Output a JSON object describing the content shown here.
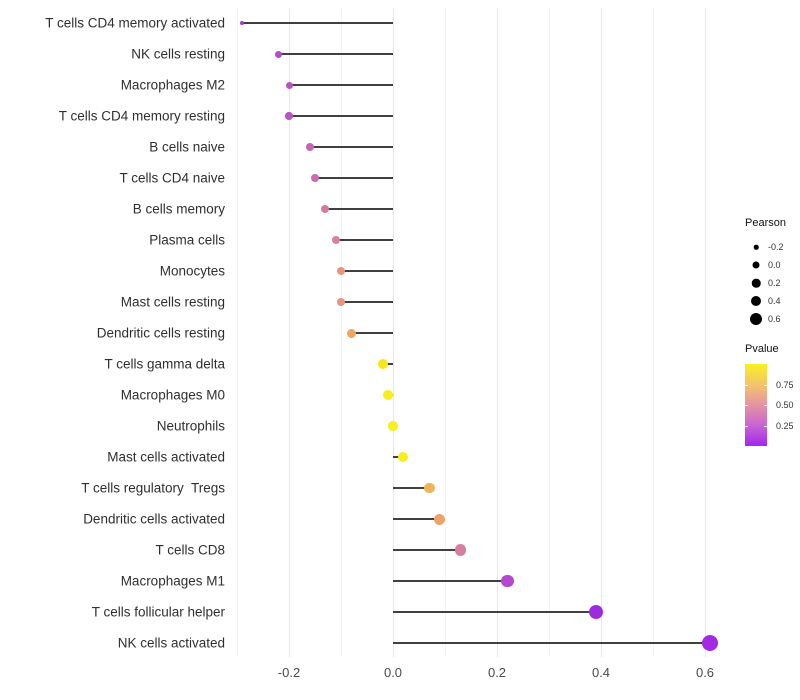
{
  "chart_data": {
    "type": "lollipop",
    "orientation": "horizontal",
    "title": "",
    "xlabel": "",
    "ylabel": "",
    "baseline": 0,
    "x_axis": {
      "tick_labels": [
        "-0.2",
        "0.0",
        "0.2",
        "0.4",
        "0.6"
      ],
      "tick_values": [
        -0.2,
        0.0,
        0.2,
        0.4,
        0.6
      ],
      "minor_gridline_values": [
        -0.3,
        -0.1,
        0.1,
        0.3,
        0.5
      ],
      "range": [
        -0.31,
        0.66
      ],
      "grid": "vertical-only"
    },
    "categories": [
      "T cells CD4 memory activated",
      "NK cells resting",
      "Macrophages M2",
      "T cells CD4 memory resting",
      "B cells naive",
      "T cells CD4 naive",
      "B cells memory",
      "Plasma cells",
      "Monocytes",
      "Mast cells resting",
      "Dendritic cells resting",
      "T cells gamma delta",
      "Macrophages M0",
      "Neutrophils",
      "Mast cells activated",
      "T cells regulatory  Tregs",
      "Dendritic cells activated",
      "T cells CD8",
      "Macrophages M1",
      "T cells follicular helper",
      "NK cells activated"
    ],
    "points": [
      {
        "label": "T cells CD4 memory activated",
        "pearson": -0.29,
        "color": "#A13BD5",
        "size": 4
      },
      {
        "label": "NK cells resting",
        "pearson": -0.22,
        "color": "#B44CC6",
        "size": 7
      },
      {
        "label": "Macrophages M2",
        "pearson": -0.2,
        "color": "#B851C2",
        "size": 7
      },
      {
        "label": "T cells CD4 memory resting",
        "pearson": -0.2,
        "color": "#BA54C0",
        "size": 7.5
      },
      {
        "label": "B cells naive",
        "pearson": -0.16,
        "color": "#C464B2",
        "size": 8
      },
      {
        "label": "T cells CD4 naive",
        "pearson": -0.15,
        "color": "#C96BAC",
        "size": 8
      },
      {
        "label": "B cells memory",
        "pearson": -0.13,
        "color": "#D27BA0",
        "size": 8
      },
      {
        "label": "Plasma cells",
        "pearson": -0.11,
        "color": "#D8839A",
        "size": 8.5
      },
      {
        "label": "Monocytes",
        "pearson": -0.1,
        "color": "#E79480",
        "size": 8.5
      },
      {
        "label": "Mast cells resting",
        "pearson": -0.1,
        "color": "#E79480",
        "size": 8.5
      },
      {
        "label": "Dendritic cells resting",
        "pearson": -0.08,
        "color": "#EDA763",
        "size": 9
      },
      {
        "label": "T cells gamma delta",
        "pearson": -0.02,
        "color": "#F4E81D",
        "size": 10
      },
      {
        "label": "Macrophages M0",
        "pearson": -0.01,
        "color": "#F6EE1E",
        "size": 10
      },
      {
        "label": "Neutrophils",
        "pearson": 0.0,
        "color": "#F7F01F",
        "size": 9.5
      },
      {
        "label": "Mast cells activated",
        "pearson": 0.02,
        "color": "#F6EF1E",
        "size": 10
      },
      {
        "label": "T cells regulatory  Tregs",
        "pearson": 0.07,
        "color": "#EFB356",
        "size": 10.5
      },
      {
        "label": "Dendritic cells activated",
        "pearson": 0.09,
        "color": "#ECA46B",
        "size": 11
      },
      {
        "label": "T cells CD8",
        "pearson": 0.13,
        "color": "#D87DA2",
        "size": 11.5
      },
      {
        "label": "Macrophages M1",
        "pearson": 0.22,
        "color": "#B348CF",
        "size": 12.5
      },
      {
        "label": "T cells follicular helper",
        "pearson": 0.39,
        "color": "#9D2CE0",
        "size": 14
      },
      {
        "label": "NK cells activated",
        "pearson": 0.61,
        "color": "#A32AE2",
        "size": 16
      }
    ],
    "legend_size": {
      "title": "Pearson",
      "entries": [
        {
          "label": "-0.2",
          "diameter": 4.5
        },
        {
          "label": "0.0",
          "diameter": 7
        },
        {
          "label": "0.2",
          "diameter": 8.5
        },
        {
          "label": "0.4",
          "diameter": 10
        },
        {
          "label": "0.6",
          "diameter": 12
        }
      ],
      "dot_color": "#000000"
    },
    "legend_color": {
      "title": "Pvalue",
      "tick_entries": [
        {
          "label": "0.75",
          "value": 0.75
        },
        {
          "label": "0.50",
          "value": 0.5
        },
        {
          "label": "0.25",
          "value": 0.25
        }
      ],
      "gradient_top_to_bottom": [
        {
          "pos": 0.0,
          "color": "#F9F021"
        },
        {
          "pos": 0.25,
          "color": "#F3C46C"
        },
        {
          "pos": 0.5,
          "color": "#E593A2"
        },
        {
          "pos": 0.75,
          "color": "#C765D2"
        },
        {
          "pos": 1.0,
          "color": "#A326EE"
        }
      ]
    },
    "style": {
      "stem_color": "#404040",
      "background": "#ffffff",
      "major_grid_color": "#e7e7e7",
      "minor_grid_color": "#f3f3f3"
    }
  }
}
